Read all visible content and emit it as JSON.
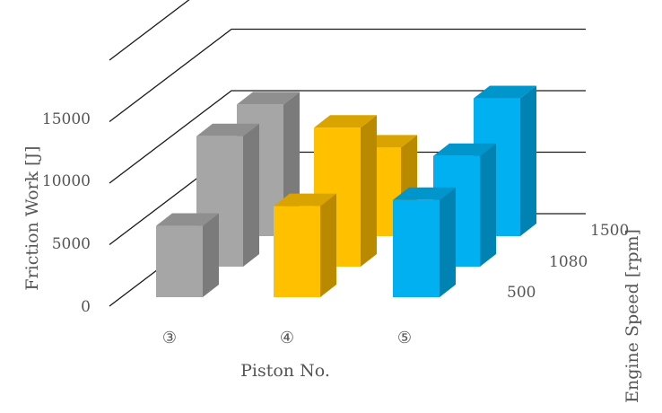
{
  "chart_data": {
    "type": "bar",
    "subtype": "3d-column",
    "ylabel": "Friction Work [J]",
    "xlabel": "Piston No.",
    "zlabel": "Engine Speed [rpm]",
    "categories": [
      "③",
      "④",
      "⑤"
    ],
    "series": [
      {
        "name": "500",
        "values": [
          5800,
          7400,
          7900
        ]
      },
      {
        "name": "1080",
        "values": [
          10600,
          11300,
          9000
        ]
      },
      {
        "name": "1500",
        "values": [
          10700,
          7200,
          11200
        ]
      }
    ],
    "ylim": [
      0,
      15000
    ],
    "yticks": [
      "0",
      "5000",
      "10000",
      "15000"
    ],
    "grid": true,
    "colors": {
      "③": {
        "front": "#A6A6A6",
        "side": "#7B7B7B",
        "top": "#8F8F8F"
      },
      "④": {
        "front": "#FFC000",
        "side": "#B98A00",
        "top": "#D9A300"
      },
      "⑤": {
        "front": "#00B0F0",
        "side": "#0082B3",
        "top": "#0096CC"
      }
    }
  }
}
